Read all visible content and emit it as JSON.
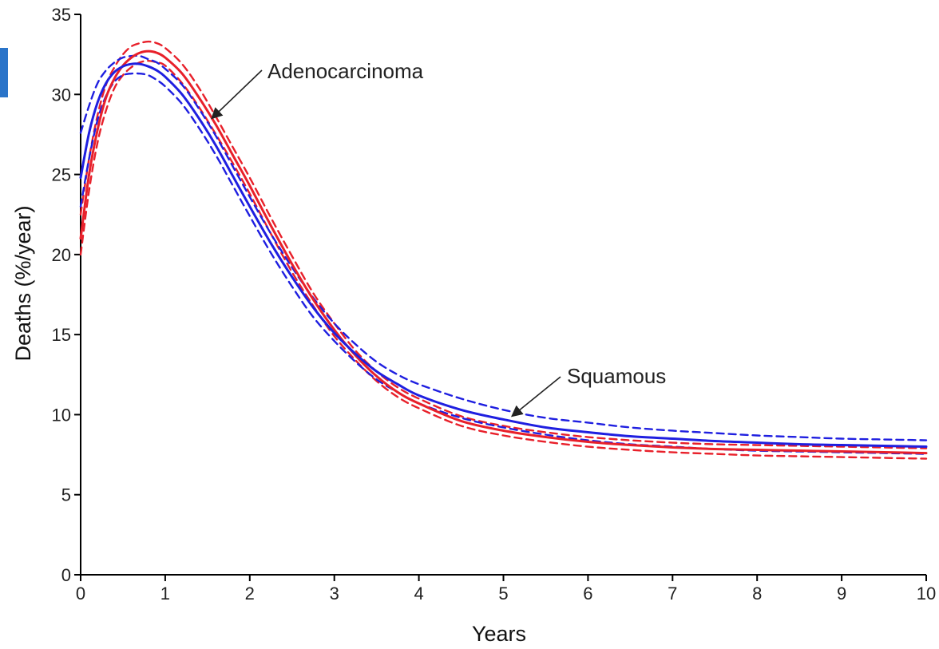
{
  "chart_data": {
    "type": "line",
    "title": "",
    "xlabel": "Years",
    "ylabel": "Deaths  (%/year)",
    "xlim": [
      0,
      10
    ],
    "ylim": [
      0,
      35
    ],
    "x_ticks": [
      "0",
      "1",
      "2",
      "3",
      "4",
      "5",
      "6",
      "7",
      "8",
      "9",
      "10"
    ],
    "y_ticks": [
      "0",
      "5",
      "10",
      "15",
      "20",
      "25",
      "30",
      "35"
    ],
    "grid": false,
    "legend": "none",
    "x": [
      0,
      0.1,
      0.2,
      0.3,
      0.4,
      0.5,
      0.6,
      0.7,
      0.8,
      0.9,
      1.0,
      1.2,
      1.4,
      1.6,
      1.8,
      2.0,
      2.25,
      2.5,
      2.75,
      3.0,
      3.25,
      3.5,
      3.75,
      4.0,
      4.5,
      5.0,
      5.5,
      6.0,
      6.5,
      7.0,
      7.5,
      8.0,
      8.5,
      9.0,
      9.5,
      10.0
    ],
    "series": [
      {
        "name": "Adenocarcinoma",
        "color": "#e8202a",
        "style": "solid",
        "values": [
          21.0,
          25.0,
          27.8,
          29.8,
          31.0,
          31.8,
          32.3,
          32.6,
          32.7,
          32.6,
          32.3,
          31.3,
          29.8,
          28.1,
          26.2,
          24.3,
          21.8,
          19.4,
          17.2,
          15.3,
          13.7,
          12.4,
          11.4,
          10.7,
          9.6,
          9.0,
          8.6,
          8.3,
          8.1,
          7.95,
          7.85,
          7.8,
          7.75,
          7.7,
          7.65,
          7.6
        ]
      },
      {
        "name": "Squamous",
        "color": "#1f1fe0",
        "style": "solid",
        "values": [
          24.8,
          27.6,
          29.5,
          30.7,
          31.4,
          31.75,
          31.9,
          31.9,
          31.75,
          31.5,
          31.1,
          30.0,
          28.5,
          26.8,
          24.9,
          23.0,
          20.7,
          18.6,
          16.7,
          15.1,
          13.8,
          12.7,
          11.9,
          11.2,
          10.3,
          9.7,
          9.2,
          8.9,
          8.65,
          8.5,
          8.35,
          8.25,
          8.15,
          8.1,
          8.05,
          8.0
        ]
      },
      {
        "name": "Adenocarcinoma upper",
        "color": "#e8202a",
        "style": "dashed",
        "values": [
          22.5,
          26.0,
          28.7,
          30.6,
          31.7,
          32.5,
          33.0,
          33.2,
          33.3,
          33.2,
          32.9,
          31.9,
          30.4,
          28.6,
          26.7,
          24.8,
          22.3,
          19.9,
          17.6,
          15.7,
          14.0,
          12.7,
          11.7,
          11.0,
          9.9,
          9.3,
          8.9,
          8.6,
          8.4,
          8.25,
          8.15,
          8.1,
          8.05,
          8.0,
          7.95,
          7.9
        ]
      },
      {
        "name": "Adenocarcinoma lower",
        "color": "#e8202a",
        "style": "dashed",
        "values": [
          20.0,
          24.0,
          27.0,
          29.0,
          30.4,
          31.2,
          31.7,
          32.0,
          32.1,
          32.0,
          31.8,
          30.7,
          29.2,
          27.5,
          25.7,
          23.8,
          21.3,
          18.9,
          16.8,
          14.9,
          13.4,
          12.1,
          11.1,
          10.4,
          9.3,
          8.7,
          8.3,
          8.0,
          7.8,
          7.65,
          7.55,
          7.45,
          7.4,
          7.35,
          7.3,
          7.25
        ]
      },
      {
        "name": "Squamous upper",
        "color": "#1f1fe0",
        "style": "dashed",
        "values": [
          27.6,
          29.3,
          30.7,
          31.5,
          32.0,
          32.3,
          32.4,
          32.4,
          32.2,
          32.0,
          31.6,
          30.6,
          29.1,
          27.4,
          25.5,
          23.6,
          21.3,
          19.2,
          17.3,
          15.7,
          14.4,
          13.3,
          12.5,
          11.9,
          11.0,
          10.3,
          9.8,
          9.5,
          9.2,
          9.0,
          8.85,
          8.7,
          8.6,
          8.5,
          8.45,
          8.4
        ]
      },
      {
        "name": "Squamous lower",
        "color": "#1f1fe0",
        "style": "dashed",
        "values": [
          23.0,
          26.0,
          28.4,
          29.9,
          30.8,
          31.2,
          31.3,
          31.3,
          31.2,
          30.9,
          30.5,
          29.4,
          27.9,
          26.2,
          24.3,
          22.4,
          20.1,
          18.0,
          16.1,
          14.6,
          13.3,
          12.2,
          11.4,
          10.7,
          9.8,
          9.2,
          8.75,
          8.4,
          8.15,
          8.0,
          7.85,
          7.75,
          7.7,
          7.65,
          7.6,
          7.55
        ]
      }
    ],
    "annotations": [
      {
        "text": "Adenocarcinoma",
        "target_series": "Adenocarcinoma",
        "target_x": 1.55,
        "target_y": 28.5
      },
      {
        "text": "Squamous",
        "target_series": "Squamous",
        "target_x": 5.1,
        "target_y": 9.9
      }
    ]
  }
}
